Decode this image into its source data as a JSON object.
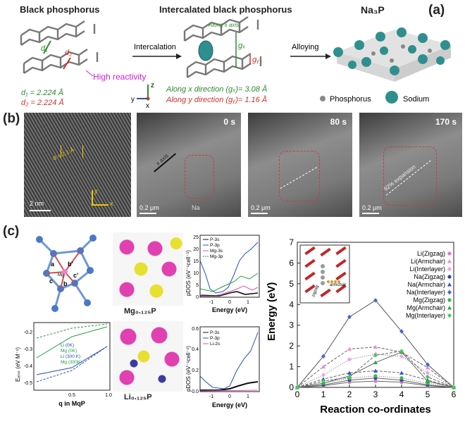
{
  "panel_a": {
    "label": "(a)",
    "bp_title": "Black phosphorus",
    "ibp_title": "Intercalated black phosphorus",
    "na3p_title": "Na₃P",
    "intercalation": "Intercalation",
    "alloying": "Alloying",
    "d1_label": "d₁",
    "d2_label": "d₂",
    "high_reactivity": "High reactivity",
    "d1_value": "d₁ = 2.224 Å",
    "d2_value": "d₂ = 2.224 Å",
    "along_x": "Along x direction (gₓ)= 3.08 Å",
    "along_y": "Along y direction (gᵧ)= 1.16 Å",
    "along_x_axis": "Along x axis",
    "gx_label": "gₓ",
    "gy_label": "gᵧ",
    "axis_z": "z",
    "axis_y": "y",
    "axis_x": "x",
    "legend_phosphorus": "Phosphorus",
    "legend_sodium": "Sodium"
  },
  "panel_b": {
    "label": "(b)",
    "hrtem_spacing": "d = 2.1 Å",
    "hrtem_scale": "2 nm",
    "hrtem_axis_y": "y",
    "hrtem_axis_x": "x",
    "frames": [
      {
        "time": "0 s",
        "scale": "0.2 μm",
        "note": "x axis",
        "extra": "Na"
      },
      {
        "time": "80 s",
        "scale": "0.2 μm",
        "note": "",
        "extra": ""
      },
      {
        "time": "170 s",
        "scale": "0.2 μm",
        "note": "92% expansion",
        "extra": ""
      }
    ]
  },
  "panel_c": {
    "label": "(c)",
    "mg_label": "Mg₀.₁₂₅P",
    "li_label": "Li₀.₁₂₅P",
    "struct_labels": [
      "a",
      "b'",
      "c",
      "b",
      "c'",
      "Mg"
    ],
    "pdos_top": {
      "ylabel": "pDOS (eV⁻¹cell⁻¹)",
      "xlabel": "Energy (eV)",
      "legend": [
        "P-3s",
        "P-3p",
        "Mg-3s",
        "Mg-3p"
      ],
      "yticks": [
        "0",
        "5",
        "10",
        "15",
        "20",
        "25"
      ],
      "xticks": [
        "-1",
        "0",
        "1"
      ]
    },
    "pdos_bot": {
      "ylabel": "pDOS (eV⁻¹cell⁻¹)",
      "xlabel": "Energy (eV)",
      "legend": [
        "P-3s",
        "P-3p",
        "Li-2s"
      ],
      "yticks": [
        "0.0",
        "0.2",
        "0.4",
        "0.6"
      ],
      "xticks": [
        "-1",
        "0",
        "1"
      ]
    },
    "edisp": {
      "ylabel": "Eₑᵢₛₚ (eV M⁻¹)",
      "xlabel": "q in MqP",
      "legend": [
        "Li (0K)",
        "Mg (0K)",
        "Li (300 K)",
        "Mg (300K)"
      ],
      "yticks": [
        "-0.2",
        "-0.3",
        "-0.4",
        "-0.5"
      ],
      "xticks": [
        "0.5",
        "1.0"
      ]
    },
    "inset_labels": [
      "zigzag",
      "armchair"
    ]
  },
  "chart_data": {
    "type": "line",
    "xlabel": "Reaction co-ordinates",
    "ylabel": "Energy (eV)",
    "xlim": [
      0,
      6
    ],
    "ylim": [
      0,
      7
    ],
    "xticks": [
      0,
      1,
      2,
      3,
      4,
      5,
      6
    ],
    "yticks": [
      0,
      1,
      2,
      3,
      4,
      5,
      6,
      7
    ],
    "legend_position": "right",
    "x": [
      0,
      1,
      2,
      3,
      4,
      5,
      6
    ],
    "series": [
      {
        "name": "Li(Zigzag)",
        "color": "#e377c2",
        "marker": "circle",
        "values": [
          0.0,
          0.08,
          0.25,
          0.3,
          0.25,
          0.08,
          0.0
        ]
      },
      {
        "name": "Li(Armchair)",
        "color": "#f08bd0",
        "marker": "triangle",
        "values": [
          0.0,
          1.0,
          1.85,
          1.95,
          1.7,
          0.95,
          0.0
        ]
      },
      {
        "name": "Li(Interlayer)",
        "color": "#f4a0dd",
        "marker": "diamond",
        "values": [
          0.0,
          0.6,
          1.35,
          1.6,
          1.5,
          0.7,
          0.0
        ]
      },
      {
        "name": "Na(Zigzag)",
        "color": "#2b4aa8",
        "marker": "circle",
        "values": [
          0.0,
          0.12,
          0.35,
          0.45,
          0.35,
          0.12,
          0.0
        ]
      },
      {
        "name": "Na(Armchair)",
        "color": "#3355cc",
        "marker": "triangle",
        "values": [
          0.0,
          0.4,
          0.7,
          0.8,
          0.7,
          0.35,
          0.0
        ]
      },
      {
        "name": "Na(Interlayer)",
        "color": "#4466dd",
        "marker": "diamond",
        "values": [
          0.0,
          1.5,
          3.4,
          4.2,
          2.7,
          1.1,
          0.0
        ]
      },
      {
        "name": "Mg(Zigzag)",
        "color": "#33bb44",
        "marker": "circle",
        "values": [
          0.0,
          0.2,
          0.45,
          0.55,
          0.45,
          0.2,
          0.0
        ]
      },
      {
        "name": "Mg(Armchair)",
        "color": "#2aa83a",
        "marker": "triangle",
        "values": [
          0.0,
          0.2,
          0.55,
          1.2,
          1.7,
          0.3,
          0.0
        ]
      },
      {
        "name": "Mg(Interlayer)",
        "color": "#44cc55",
        "marker": "diamond",
        "values": [
          0.0,
          0.3,
          0.5,
          1.55,
          1.75,
          0.5,
          0.0
        ]
      }
    ]
  }
}
